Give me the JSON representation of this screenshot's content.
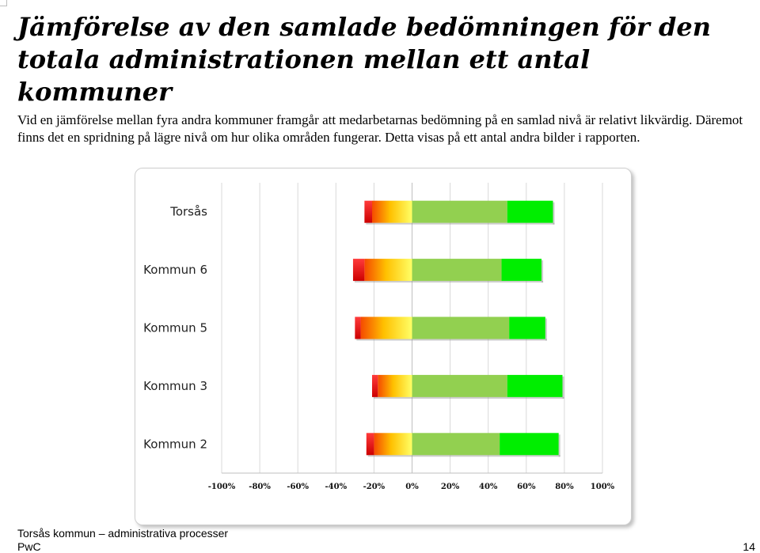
{
  "page": {
    "title": "Jämförelse av den samlade bedömningen för den totala administrationen mellan ett antal kommuner",
    "intro": "Vid en jämförelse mellan fyra andra kommuner framgår att medarbetarnas bedömning på en samlad nivå är  relativt likvärdig. Däremot finns det en spridning på lägre nivå om hur olika områden fungerar. Detta visas på ett antal andra bilder i rapporten.",
    "footer_left": "Torsås kommun – administrativa processer",
    "footer_brand": "PwC",
    "page_number": "14"
  },
  "colors": {
    "red": "#e4161b",
    "orange_red": "#f54a00",
    "yellow": "#ffff66",
    "light_green": "#92d050",
    "green": "#00ee00"
  },
  "chart_data": {
    "type": "bar",
    "orientation": "horizontal-diverging",
    "categories": [
      "Torsås",
      "Kommun 6",
      "Kommun 5",
      "Kommun 3",
      "Kommun 2"
    ],
    "series": [
      {
        "values": [
          -4,
          -6,
          -3,
          -3,
          -4
        ]
      },
      {
        "values": [
          -21,
          -25,
          -27,
          -18,
          -20
        ]
      },
      {
        "values": [
          50,
          47,
          51,
          50,
          46
        ]
      },
      {
        "values": [
          24,
          21,
          19,
          29,
          31
        ]
      }
    ],
    "xlim": [
      -100,
      100
    ],
    "xticks": [
      "-100%",
      "-80%",
      "-60%",
      "-40%",
      "-20%",
      "0%",
      "20%",
      "40%",
      "60%",
      "80%",
      "100%"
    ],
    "grid": true,
    "legend": "none"
  }
}
